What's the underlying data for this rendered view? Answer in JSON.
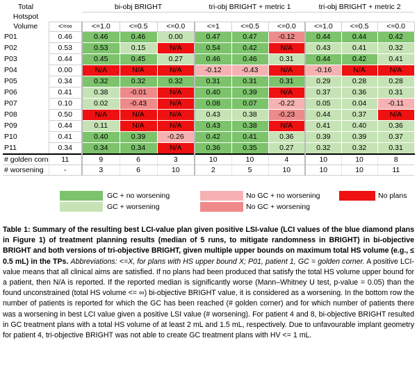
{
  "table": {
    "header": {
      "label_lines": [
        "Total",
        "Hotspot",
        "Volume"
      ],
      "groups": [
        "bi-obj BRIGHT",
        "tri-obj BRIGHT + metric 1",
        "tri-obj BRIGHT + metric 2"
      ],
      "bounds": [
        "<=∞",
        "<=1.0",
        "<=0.5",
        "<=0.0",
        "<=1",
        "<=0.5",
        "<=0.0",
        "<=1.0",
        "<=0.5",
        "<=0.0"
      ]
    },
    "rows": [
      {
        "patient": "P01",
        "cells": [
          [
            "0.46",
            "plain"
          ],
          [
            "0.46",
            "g"
          ],
          [
            "0.46",
            "g"
          ],
          [
            "0.00",
            "lg"
          ],
          [
            "0.47",
            "g"
          ],
          [
            "0.47",
            "g"
          ],
          [
            "-0.12",
            "dpk"
          ],
          [
            "0.44",
            "g"
          ],
          [
            "0.44",
            "g"
          ],
          [
            "0.42",
            "g"
          ]
        ]
      },
      {
        "patient": "P02",
        "cells": [
          [
            "0.53",
            "plain"
          ],
          [
            "0.53",
            "g"
          ],
          [
            "0.15",
            "lg"
          ],
          [
            "N/A",
            "red"
          ],
          [
            "0.54",
            "g"
          ],
          [
            "0.42",
            "g"
          ],
          [
            "N/A",
            "red"
          ],
          [
            "0.43",
            "lg"
          ],
          [
            "0.41",
            "lg"
          ],
          [
            "0.32",
            "lg"
          ]
        ]
      },
      {
        "patient": "P03",
        "cells": [
          [
            "0.44",
            "plain"
          ],
          [
            "0.45",
            "g"
          ],
          [
            "0.45",
            "g"
          ],
          [
            "0.27",
            "lg"
          ],
          [
            "0.46",
            "g"
          ],
          [
            "0.46",
            "g"
          ],
          [
            "0.31",
            "lg"
          ],
          [
            "0.44",
            "g"
          ],
          [
            "0.42",
            "g"
          ],
          [
            "0.41",
            "lg"
          ]
        ]
      },
      {
        "patient": "P04",
        "cells": [
          [
            "0.00",
            "plain"
          ],
          [
            "N/A",
            "red"
          ],
          [
            "N/A",
            "red"
          ],
          [
            "N/A",
            "red"
          ],
          [
            "-0.12",
            "pk"
          ],
          [
            "-0.43",
            "pk"
          ],
          [
            "N/A",
            "red"
          ],
          [
            "-0.16",
            "pk"
          ],
          [
            "N/A",
            "red"
          ],
          [
            "N/A",
            "red"
          ]
        ]
      },
      {
        "patient": "P05",
        "cells": [
          [
            "0.34",
            "plain"
          ],
          [
            "0.32",
            "g"
          ],
          [
            "0.32",
            "g"
          ],
          [
            "0.32",
            "g"
          ],
          [
            "0.31",
            "g"
          ],
          [
            "0.31",
            "g"
          ],
          [
            "0.31",
            "g"
          ],
          [
            "0.29",
            "lg"
          ],
          [
            "0.28",
            "lg"
          ],
          [
            "0.28",
            "lg"
          ]
        ]
      },
      {
        "patient": "P06",
        "cells": [
          [
            "0.41",
            "plain"
          ],
          [
            "0.38",
            "lg"
          ],
          [
            "-0.01",
            "dpk"
          ],
          [
            "N/A",
            "red"
          ],
          [
            "0.40",
            "g"
          ],
          [
            "0.39",
            "g"
          ],
          [
            "N/A",
            "red"
          ],
          [
            "0.37",
            "lg"
          ],
          [
            "0.36",
            "lg"
          ],
          [
            "0.31",
            "lg"
          ]
        ]
      },
      {
        "patient": "P07",
        "cells": [
          [
            "0.10",
            "plain"
          ],
          [
            "0.02",
            "lg"
          ],
          [
            "-0.43",
            "dpk"
          ],
          [
            "N/A",
            "red"
          ],
          [
            "0.08",
            "g"
          ],
          [
            "0.07",
            "g"
          ],
          [
            "-0.22",
            "pk"
          ],
          [
            "0.05",
            "lg"
          ],
          [
            "0.04",
            "lg"
          ],
          [
            "-0.11",
            "pk"
          ]
        ]
      },
      {
        "patient": "P08",
        "cells": [
          [
            "0.50",
            "plain"
          ],
          [
            "N/A",
            "red"
          ],
          [
            "N/A",
            "red"
          ],
          [
            "N/A",
            "red"
          ],
          [
            "0.43",
            "lg"
          ],
          [
            "0.38",
            "lg"
          ],
          [
            "-0.23",
            "dpk"
          ],
          [
            "0.44",
            "lg"
          ],
          [
            "0.37",
            "lg"
          ],
          [
            "N/A",
            "red"
          ]
        ]
      },
      {
        "patient": "P09",
        "cells": [
          [
            "0.44",
            "plain"
          ],
          [
            "0.11",
            "lg"
          ],
          [
            "N/A",
            "red"
          ],
          [
            "N/A",
            "red"
          ],
          [
            "0.43",
            "g"
          ],
          [
            "0.38",
            "g"
          ],
          [
            "N/A",
            "red"
          ],
          [
            "0.41",
            "lg"
          ],
          [
            "0.40",
            "lg"
          ],
          [
            "0.36",
            "lg"
          ]
        ]
      },
      {
        "patient": "P10",
        "cells": [
          [
            "0.41",
            "plain"
          ],
          [
            "0.40",
            "g"
          ],
          [
            "0.39",
            "g"
          ],
          [
            "-0.26",
            "pk"
          ],
          [
            "0.42",
            "g"
          ],
          [
            "0.41",
            "g"
          ],
          [
            "0.36",
            "lg"
          ],
          [
            "0.39",
            "lg"
          ],
          [
            "0.39",
            "lg"
          ],
          [
            "0.37",
            "lg"
          ]
        ]
      },
      {
        "patient": "P11",
        "cells": [
          [
            "0.34",
            "plain"
          ],
          [
            "0.34",
            "g"
          ],
          [
            "0.34",
            "g"
          ],
          [
            "N/A",
            "red"
          ],
          [
            "0.36",
            "g"
          ],
          [
            "0.35",
            "g"
          ],
          [
            "0.27",
            "lg"
          ],
          [
            "0.32",
            "lg"
          ],
          [
            "0.32",
            "lg"
          ],
          [
            "0.31",
            "lg"
          ]
        ]
      }
    ],
    "summary": [
      {
        "label": "# golden corner",
        "values": [
          "11",
          "9",
          "6",
          "3",
          "10",
          "10",
          "4",
          "10",
          "10",
          "8"
        ]
      },
      {
        "label": "# worsening",
        "values": [
          "-",
          "3",
          "6",
          "10",
          "2",
          "5",
          "10",
          "10",
          "10",
          "11"
        ]
      }
    ]
  },
  "legend": {
    "gc_no_worsening": "GC + no worsening",
    "gc_worsening": "GC + worsening",
    "no_gc_no_worsening": "No GC + no worsening",
    "no_gc_worsening": "No GC + worsening",
    "no_plans": "No plans"
  },
  "colors": {
    "gc_no_worsening": "#7cc36b",
    "gc_worsening": "#c6e3b5",
    "no_gc_no_worsening": "#f6b2b2",
    "no_gc_worsening": "#ee8a8a",
    "no_plans": "#ee1111"
  },
  "caption": {
    "title": "Table 1: Summary of the resulting best LCI-value plan given positive LSI-value (LCI values of the blue diamond plans in Figure 1) of treatment planning results (median of 5 runs, to mitigate randomness in BRIGHT) in bi-objective BRIGHT and both versions of tri-objective BRIGHT, given multiple upper bounds on maximum total HS volume (e.g., ≤ 0.5 mL) in the TPs.",
    "abbr_label": "Abbreviations:",
    "abbr_text": "<=X, for plans with HS upper bound X; P01, patient 1, GC = golden corner.",
    "body": "A positive LCI-value means that all clinical aims are satisfied. If no plans had been produced that satisfy the total HS volume upper bound for a patient, then N/A is reported. If the reported median is significantly worse (Mann–Whitney U test, p-value = 0.05) than the found unconstrained (total HS volume <= ∞) bi-objective BRIGHT value, it is considered as a worsening. In the bottom row the number of patients is reported for which the GC has been reached (# golden corner) and for which number of patients there was a worsening in best LCI value given a positive LSI value (# worsening). For patient 4 and 8, bi-objective BRIGHT resulted in GC treatment plans with a total  HS volume of at least 2 mL and 1.5 mL, respectively. Due to unfavourable implant geometry for patient 4, tri-objective BRIGHT was not able to create GC treatment plans with HV <= 1 mL."
  }
}
